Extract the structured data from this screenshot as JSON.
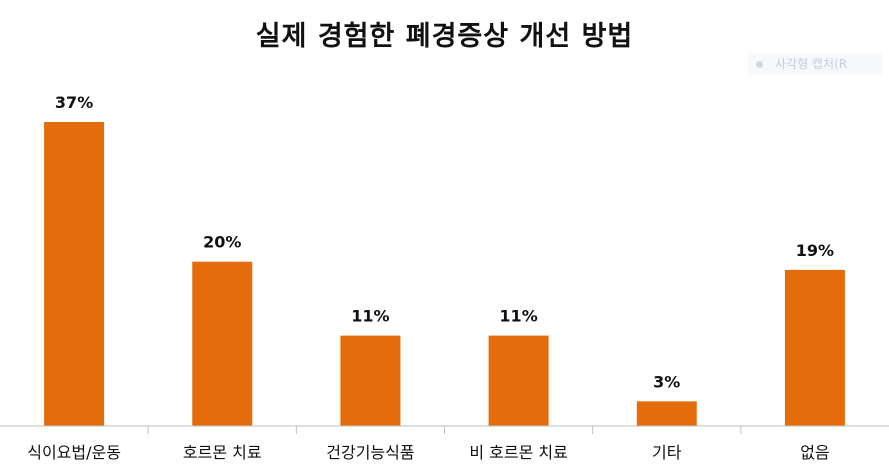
{
  "chart_data": {
    "type": "bar",
    "title": "실제 경험한 폐경증상 개선 방법",
    "categories": [
      "식이요법/운동",
      "호르몬 치료",
      "건강기능식품",
      "비 호르몬 치료",
      "기타",
      "없음"
    ],
    "values": [
      37,
      20,
      11,
      11,
      3,
      19
    ],
    "value_labels": [
      "37%",
      "20%",
      "11%",
      "11%",
      "3%",
      "19%"
    ],
    "xlabel": "",
    "ylabel": "",
    "ylim": [
      0,
      37
    ],
    "grid": false,
    "legend": "none",
    "bar_color": "#E46C0A"
  },
  "watermark": {
    "text": "사각형 캡처(R"
  }
}
